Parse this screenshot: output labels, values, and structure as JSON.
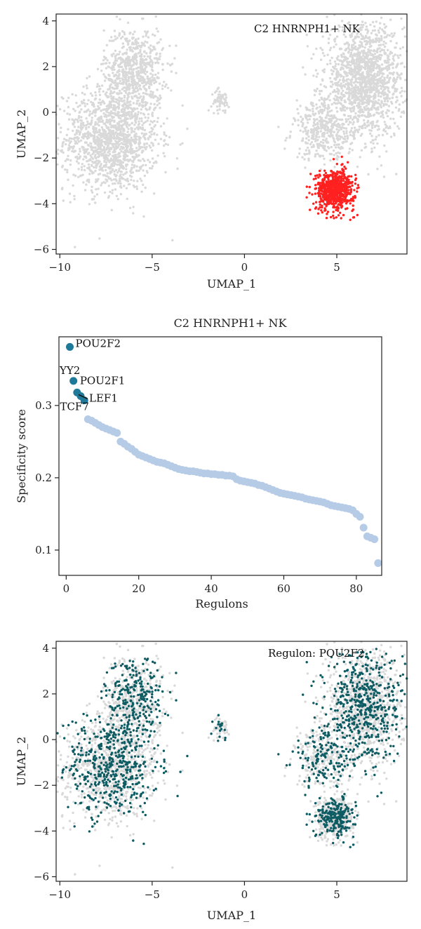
{
  "chart_data": [
    {
      "type": "scatter",
      "title": "",
      "annotation": "C2 HNRNPH1+ NK",
      "xlabel": "UMAP_1",
      "ylabel": "UMAP_2",
      "xlim": [
        -10.2,
        8.8
      ],
      "ylim": [
        -6.2,
        4.3
      ],
      "xticks": [
        -10,
        -5,
        0,
        5
      ],
      "yticks": [
        -6,
        -4,
        -2,
        0,
        2,
        4
      ],
      "colors": {
        "background": "#d9d9d9",
        "highlight": "#ff2020"
      },
      "clusters": [
        {
          "role": "background",
          "cx": -7.2,
          "cy": -1.2,
          "sx": 1.6,
          "sy": 1.4,
          "n": 1400
        },
        {
          "role": "background",
          "cx": -6.0,
          "cy": 1.8,
          "sx": 1.0,
          "sy": 1.2,
          "n": 700
        },
        {
          "role": "background",
          "cx": -1.3,
          "cy": 0.5,
          "sx": 0.3,
          "sy": 0.3,
          "n": 60
        },
        {
          "role": "background",
          "cx": 6.5,
          "cy": 1.4,
          "sx": 1.3,
          "sy": 1.5,
          "n": 1500
        },
        {
          "role": "background",
          "cx": 4.3,
          "cy": -0.8,
          "sx": 1.0,
          "sy": 0.8,
          "n": 400
        },
        {
          "role": "highlight",
          "cx": 4.9,
          "cy": -3.4,
          "sx": 0.65,
          "sy": 0.55,
          "n": 650
        }
      ]
    },
    {
      "type": "scatter",
      "title": "C2 HNRNPH1+ NK",
      "xlabel": "Regulons",
      "ylabel": "Specificity score",
      "xlim": [
        -2,
        87
      ],
      "ylim": [
        0.065,
        0.395
      ],
      "xticks": [
        0,
        20,
        40,
        60,
        80
      ],
      "yticks": [
        0.1,
        0.2,
        0.3
      ],
      "colors": {
        "top": "#1f7a99",
        "rest": "#b6cbe6"
      },
      "top_points": [
        {
          "x": 1,
          "y": 0.381,
          "label": "POU2F2"
        },
        {
          "x": 2,
          "y": 0.334,
          "label": "YY2"
        },
        {
          "x": 3,
          "y": 0.318,
          "label": "POU2F1"
        },
        {
          "x": 4,
          "y": 0.313,
          "label": "LEF1"
        },
        {
          "x": 5,
          "y": 0.307,
          "label": "TCF7"
        }
      ],
      "rest_points_x": [
        6,
        7,
        8,
        9,
        10,
        11,
        12,
        13,
        14,
        15,
        16,
        17,
        18,
        19,
        20,
        21,
        22,
        23,
        24,
        25,
        26,
        27,
        28,
        29,
        30,
        31,
        32,
        33,
        34,
        35,
        36,
        37,
        38,
        39,
        40,
        41,
        42,
        43,
        44,
        45,
        46,
        47,
        48,
        49,
        50,
        51,
        52,
        53,
        54,
        55,
        56,
        57,
        58,
        59,
        60,
        61,
        62,
        63,
        64,
        65,
        66,
        67,
        68,
        69,
        70,
        71,
        72,
        73,
        74,
        75,
        76,
        77,
        78,
        79,
        80,
        81,
        82,
        83,
        84,
        85
      ],
      "rest_points_y": [
        0.281,
        0.279,
        0.276,
        0.273,
        0.27,
        0.268,
        0.266,
        0.264,
        0.262,
        0.25,
        0.247,
        0.243,
        0.24,
        0.236,
        0.232,
        0.23,
        0.228,
        0.226,
        0.224,
        0.222,
        0.221,
        0.22,
        0.218,
        0.216,
        0.214,
        0.212,
        0.211,
        0.21,
        0.209,
        0.209,
        0.208,
        0.207,
        0.206,
        0.206,
        0.205,
        0.205,
        0.204,
        0.204,
        0.203,
        0.203,
        0.202,
        0.198,
        0.196,
        0.195,
        0.194,
        0.193,
        0.192,
        0.19,
        0.189,
        0.187,
        0.185,
        0.183,
        0.181,
        0.179,
        0.178,
        0.177,
        0.176,
        0.175,
        0.174,
        0.173,
        0.171,
        0.17,
        0.169,
        0.168,
        0.167,
        0.166,
        0.164,
        0.162,
        0.161,
        0.16,
        0.159,
        0.158,
        0.157,
        0.155,
        0.15,
        0.146,
        0.131,
        0.119,
        0.117,
        0.115
      ]
    },
    {
      "type": "scatter",
      "title": "",
      "annotation": "Regulon: POU2F2",
      "xlabel": "UMAP_1",
      "ylabel": "UMAP_2",
      "xlim": [
        -10.2,
        8.8
      ],
      "ylim": [
        -6.2,
        4.3
      ],
      "xticks": [
        -10,
        -5,
        0,
        5
      ],
      "yticks": [
        -6,
        -4,
        -2,
        0,
        2,
        4
      ],
      "colors": {
        "background": "#d9d9d9",
        "active": "#0e5c63"
      },
      "active_fraction": 0.35
    }
  ]
}
